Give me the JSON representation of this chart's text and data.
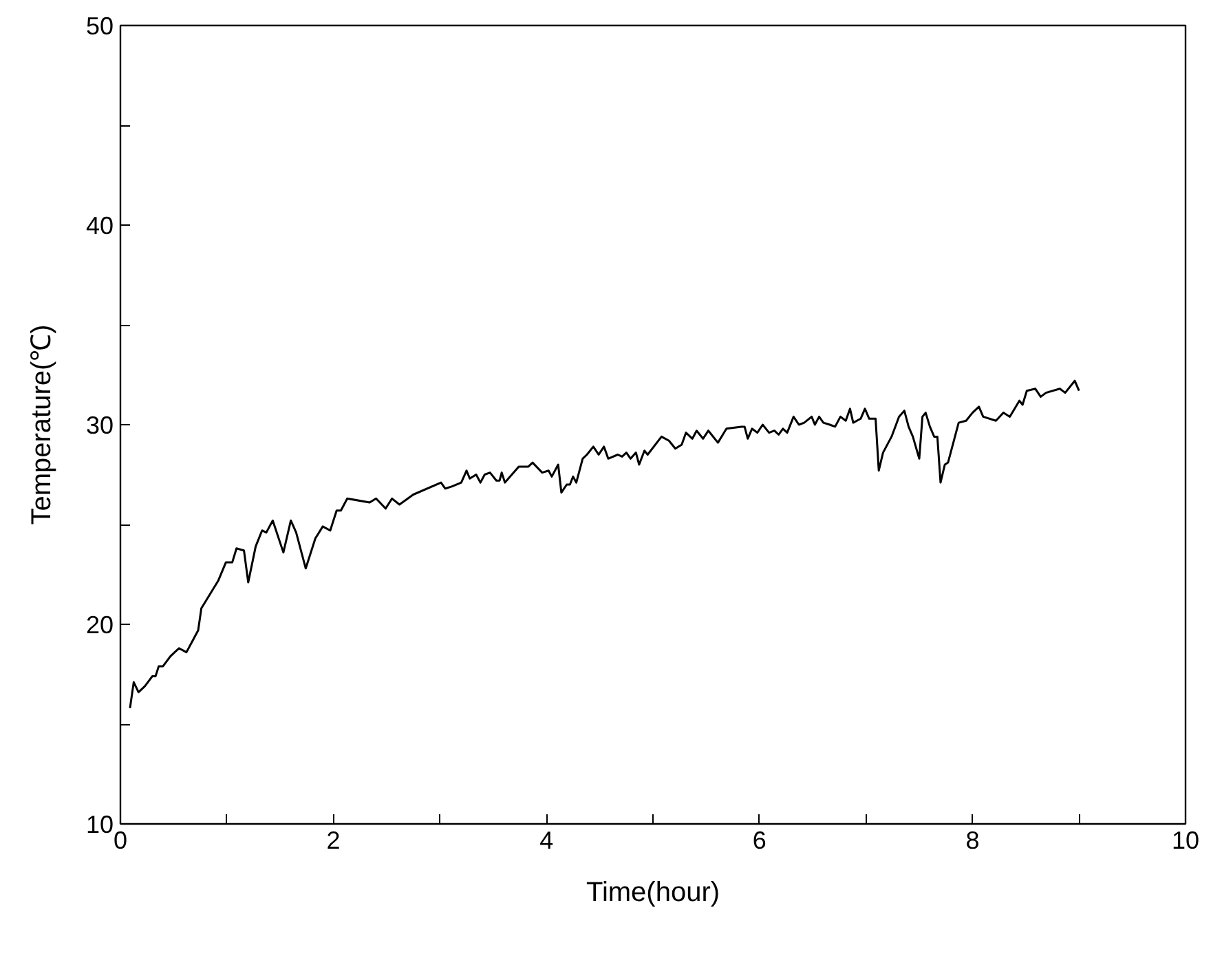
{
  "chart_data": {
    "type": "line",
    "xlabel": "Time(hour)",
    "ylabel": "Temperature(℃)",
    "xlim": [
      0,
      10
    ],
    "ylim": [
      10,
      50
    ],
    "xticks": [
      0,
      {
        "value": 1,
        "label": null
      },
      2,
      {
        "value": 3,
        "label": null
      },
      4,
      {
        "value": 5,
        "label": null
      },
      6,
      {
        "value": 7,
        "label": null
      },
      8,
      {
        "value": 9,
        "label": null
      },
      10
    ],
    "yticks": [
      10,
      {
        "value": 15,
        "label": null
      },
      20,
      {
        "value": 25,
        "label": null
      },
      30,
      {
        "value": 35,
        "label": null
      },
      40,
      {
        "value": 45,
        "label": null
      },
      50
    ],
    "grid": false,
    "marker": "none",
    "line_style": "solid",
    "series": [
      {
        "color": "#000000",
        "x": [
          0.09,
          0.125,
          0.17,
          0.23,
          0.3,
          0.33,
          0.36,
          0.4,
          0.47,
          0.55,
          0.62,
          0.68,
          0.73,
          0.76,
          0.84,
          0.92,
          0.99,
          1.05,
          1.09,
          1.16,
          1.2,
          1.27,
          1.33,
          1.37,
          1.43,
          1.53,
          1.6,
          1.65,
          1.74,
          1.83,
          1.9,
          1.97,
          2.03,
          2.07,
          2.13,
          2.34,
          2.4,
          2.49,
          2.55,
          2.62,
          2.75,
          3.01,
          3.05,
          3.11,
          3.2,
          3.25,
          3.28,
          3.34,
          3.38,
          3.42,
          3.47,
          3.53,
          3.56,
          3.58,
          3.61,
          3.74,
          3.83,
          3.87,
          3.96,
          4.02,
          4.05,
          4.11,
          4.14,
          4.19,
          4.22,
          4.25,
          4.28,
          4.34,
          4.38,
          4.44,
          4.49,
          4.54,
          4.58,
          4.67,
          4.71,
          4.75,
          4.79,
          4.84,
          4.87,
          4.92,
          4.95,
          5.08,
          5.15,
          5.21,
          5.27,
          5.31,
          5.37,
          5.41,
          5.47,
          5.52,
          5.61,
          5.69,
          5.83,
          5.86,
          5.89,
          5.93,
          5.98,
          6.03,
          6.09,
          6.14,
          6.18,
          6.22,
          6.26,
          6.32,
          6.37,
          6.42,
          6.49,
          6.52,
          6.56,
          6.6,
          6.66,
          6.71,
          6.76,
          6.81,
          6.85,
          6.88,
          6.95,
          6.99,
          7.03,
          7.09,
          7.12,
          7.16,
          7.24,
          7.31,
          7.36,
          7.4,
          7.44,
          7.5,
          7.53,
          7.56,
          7.6,
          7.64,
          7.67,
          7.7,
          7.74,
          7.77,
          7.87,
          7.94,
          8.0,
          8.06,
          8.1,
          8.22,
          8.29,
          8.35,
          8.44,
          8.47,
          8.51,
          8.59,
          8.64,
          8.69,
          8.82,
          8.87,
          8.96,
          9.0
        ],
        "values": [
          15.8,
          17.1,
          16.6,
          16.9,
          17.4,
          17.4,
          17.9,
          17.9,
          18.4,
          18.8,
          18.6,
          19.2,
          19.7,
          20.8,
          21.5,
          22.2,
          23.1,
          23.1,
          23.8,
          23.7,
          22.1,
          23.9,
          24.7,
          24.6,
          25.2,
          23.6,
          25.2,
          24.6,
          22.8,
          24.3,
          24.9,
          24.7,
          25.7,
          25.7,
          26.3,
          26.1,
          26.3,
          25.8,
          26.3,
          26.0,
          26.5,
          27.1,
          26.8,
          26.9,
          27.1,
          27.7,
          27.3,
          27.5,
          27.1,
          27.5,
          27.6,
          27.2,
          27.2,
          27.6,
          27.1,
          27.9,
          27.9,
          28.1,
          27.6,
          27.7,
          27.4,
          28.0,
          26.6,
          27.0,
          27.0,
          27.4,
          27.1,
          28.3,
          28.5,
          28.9,
          28.5,
          28.9,
          28.3,
          28.5,
          28.4,
          28.6,
          28.3,
          28.6,
          28.0,
          28.7,
          28.5,
          29.4,
          29.2,
          28.8,
          29.0,
          29.6,
          29.3,
          29.7,
          29.3,
          29.7,
          29.1,
          29.8,
          29.9,
          29.9,
          29.3,
          29.8,
          29.6,
          30.0,
          29.6,
          29.7,
          29.5,
          29.8,
          29.6,
          30.4,
          30.0,
          30.1,
          30.4,
          30.0,
          30.4,
          30.1,
          30.0,
          29.9,
          30.4,
          30.2,
          30.8,
          30.1,
          30.3,
          30.8,
          30.3,
          30.3,
          27.7,
          28.6,
          29.4,
          30.4,
          30.7,
          29.9,
          29.4,
          28.3,
          30.4,
          30.6,
          29.9,
          29.4,
          29.4,
          27.1,
          28.0,
          28.1,
          30.1,
          30.2,
          30.6,
          30.9,
          30.4,
          30.2,
          30.6,
          30.4,
          31.2,
          31.0,
          31.7,
          31.8,
          31.4,
          31.6,
          31.8,
          31.6,
          32.2,
          31.7
        ]
      }
    ]
  }
}
